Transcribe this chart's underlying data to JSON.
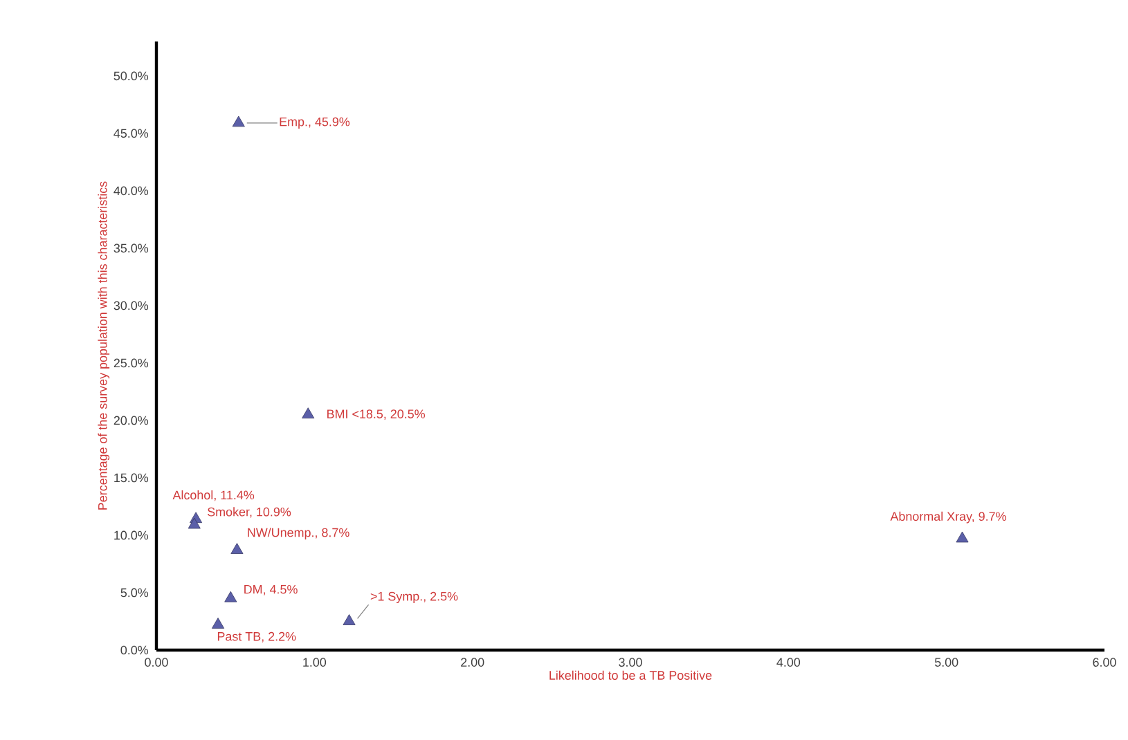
{
  "chart_data": {
    "type": "scatter",
    "xlabel": "Likelihood to be a TB Positive",
    "ylabel": "Percentage of the survey population with this characteristics",
    "x": [
      0.52,
      0.96,
      0.25,
      0.24,
      0.51,
      0.47,
      1.22,
      0.39,
      5.1
    ],
    "values": [
      45.9,
      20.5,
      11.4,
      10.9,
      8.7,
      4.5,
      2.5,
      2.2,
      9.7
    ],
    "color": "#5b5fa8",
    "marker": "triangle",
    "grid": false,
    "xlim": [
      0,
      6
    ],
    "ylim": [
      0,
      53
    ],
    "xticks": [
      {
        "value": 0,
        "label": "0.00"
      },
      {
        "value": 1,
        "label": "1.00"
      },
      {
        "value": 2,
        "label": "2.00"
      },
      {
        "value": 3,
        "label": "3.00"
      },
      {
        "value": 4,
        "label": "4.00"
      },
      {
        "value": 5,
        "label": "5.00"
      },
      {
        "value": 6,
        "label": "6.00"
      }
    ],
    "yticks": [
      {
        "value": 0,
        "label": "0.0%"
      },
      {
        "value": 5,
        "label": "5.0%"
      },
      {
        "value": 10,
        "label": "10.0%"
      },
      {
        "value": 15,
        "label": "15.0%"
      },
      {
        "value": 20,
        "label": "20.0%"
      },
      {
        "value": 25,
        "label": "25.0%"
      },
      {
        "value": 30,
        "label": "30.0%"
      },
      {
        "value": 35,
        "label": "35.0%"
      },
      {
        "value": 40,
        "label": "40.0%"
      },
      {
        "value": 45,
        "label": "45.0%"
      },
      {
        "value": 50,
        "label": "50.0%"
      }
    ],
    "annotations": [
      {
        "text": "Emp., 45.9%",
        "x": 0.52,
        "y": 45.9
      },
      {
        "text": "BMI <18.5, 20.5%",
        "x": 0.96,
        "y": 20.5
      },
      {
        "text": "Alcohol, 11.4%",
        "x": 0.25,
        "y": 11.4
      },
      {
        "text": "Smoker, 10.9%",
        "x": 0.24,
        "y": 10.9
      },
      {
        "text": "NW/Unemp., 8.7%",
        "x": 0.51,
        "y": 8.7
      },
      {
        "text": "DM, 4.5%",
        "x": 0.47,
        "y": 4.5
      },
      {
        "text": ">1 Symp., 2.5%",
        "x": 1.22,
        "y": 2.5
      },
      {
        "text": "Past TB, 2.2%",
        "x": 0.39,
        "y": 2.2
      },
      {
        "text": "Abnormal Xray, 9.7%",
        "x": 5.1,
        "y": 9.7
      }
    ]
  }
}
